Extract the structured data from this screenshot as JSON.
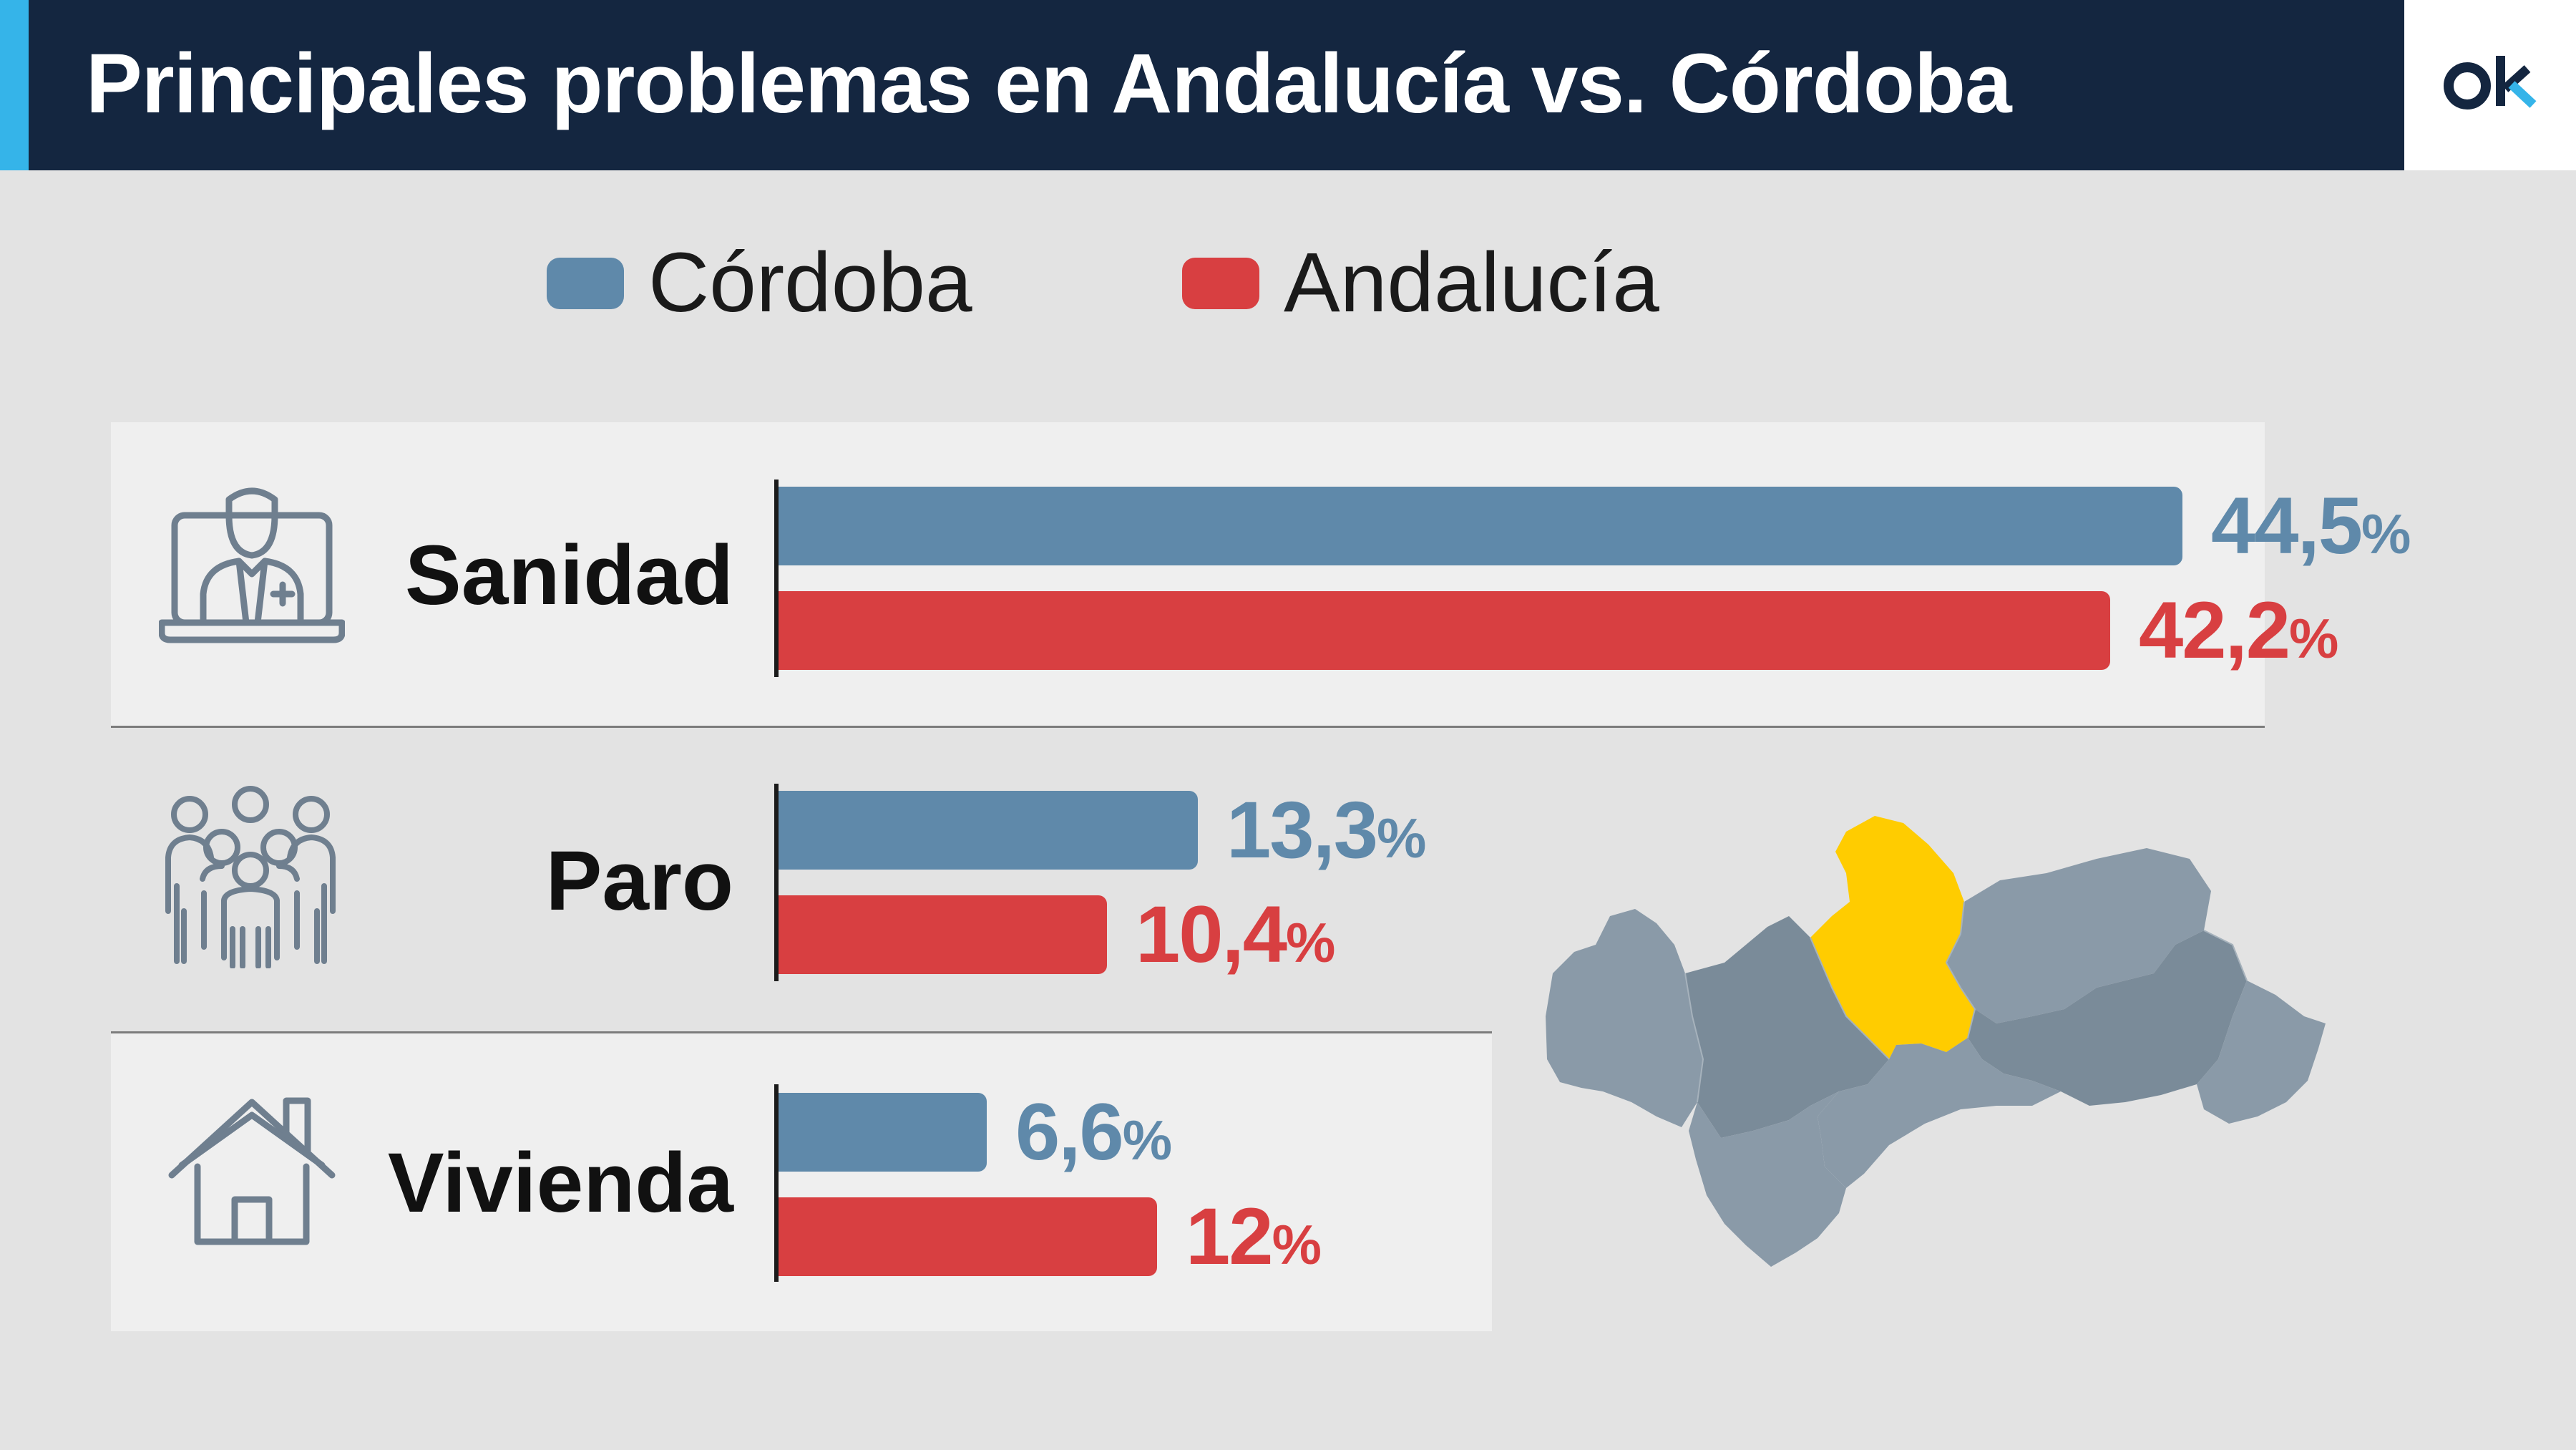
{
  "title": "Principales problemas en Andalucía vs. Córdoba",
  "logo": "ok",
  "colors": {
    "cordoba": "#5f89aa",
    "andalucia": "#d83f41",
    "header_bg": "#142640",
    "accent": "#35b4e9",
    "map_highlight": "#ffcc00"
  },
  "legend": [
    {
      "label": "Córdoba",
      "color": "#5f89aa"
    },
    {
      "label": "Andalucía",
      "color": "#d83f41"
    }
  ],
  "rows": [
    {
      "label": "Sanidad",
      "icon": "doctor-icon",
      "cordoba_text": "44,5",
      "andalucia_text": "42,2"
    },
    {
      "label": "Paro",
      "icon": "people-icon",
      "cordoba_text": "13,3",
      "andalucia_text": "10,4"
    },
    {
      "label": "Vivienda",
      "icon": "house-icon",
      "cordoba_text": "6,6",
      "andalucia_text": "12"
    }
  ],
  "pct_sign": "%",
  "chart_data": {
    "type": "bar",
    "orientation": "horizontal",
    "title": "Principales problemas en Andalucía vs. Córdoba",
    "categories": [
      "Sanidad",
      "Paro",
      "Vivienda"
    ],
    "series": [
      {
        "name": "Córdoba",
        "values": [
          44.5,
          13.3,
          6.6
        ]
      },
      {
        "name": "Andalucía",
        "values": [
          42.2,
          10.4,
          12
        ]
      }
    ],
    "unit": "%",
    "legend": "top",
    "grid": false
  }
}
